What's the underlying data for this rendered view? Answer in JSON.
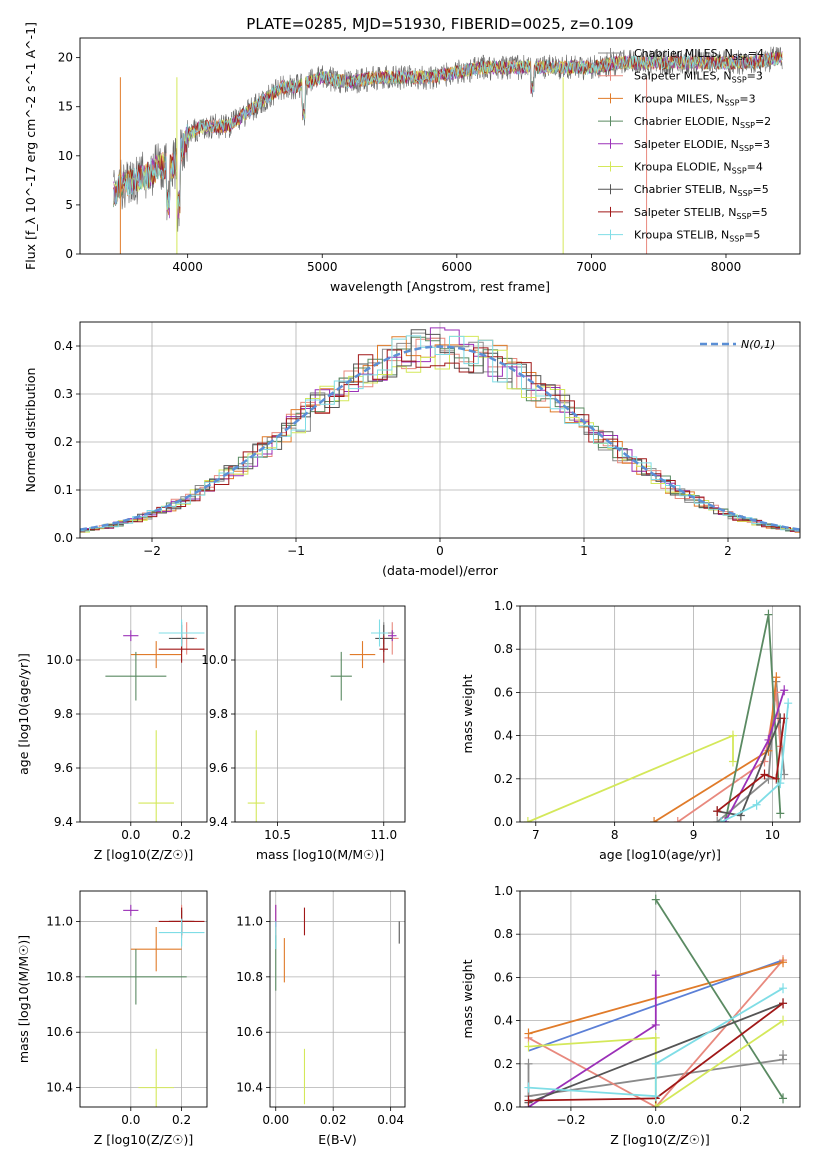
{
  "figure": {
    "title": "PLATE=0285, MJD=51930, FIBERID=0025, z=0.109"
  },
  "models": [
    {
      "name": "Chabrier MILES",
      "nssp": "4",
      "color": "#8a8a8a"
    },
    {
      "name": "Salpeter MILES",
      "nssp": "3",
      "color": "#e8897e"
    },
    {
      "name": "Kroupa MILES",
      "nssp": "3",
      "color": "#e07b2a"
    },
    {
      "name": "Chabrier ELODIE",
      "nssp": "2",
      "color": "#5a8a62"
    },
    {
      "name": "Salpeter ELODIE",
      "nssp": "3",
      "color": "#9b30b8"
    },
    {
      "name": "Kroupa ELODIE",
      "nssp": "4",
      "color": "#d4e85a"
    },
    {
      "name": "Chabrier STELIB",
      "nssp": "5",
      "color": "#555555"
    },
    {
      "name": "Salpeter STELIB",
      "nssp": "5",
      "color": "#a01818"
    },
    {
      "name": "Kroupa STELIB",
      "nssp": "5",
      "color": "#7fdde6"
    }
  ],
  "chart_data": [
    {
      "id": "spectrum",
      "type": "line",
      "title": "PLATE=0285, MJD=51930, FIBERID=0025, z=0.109",
      "xlabel": "wavelength [Angstrom, rest frame]",
      "ylabel": "Flux [f_λ 10^-17 erg cm^-2 s^-1 A^-1]",
      "xlim": [
        3200,
        8550
      ],
      "ylim": [
        0,
        22
      ],
      "xticks": [
        4000,
        5000,
        6000,
        7000,
        8000
      ],
      "yticks": [
        0,
        5,
        10,
        15,
        20
      ],
      "grid": false,
      "legend_position": "top-right",
      "spectrum_envelope": {
        "x": [
          3450,
          3500,
          3600,
          3700,
          3800,
          3900,
          4000,
          4100,
          4200,
          4300,
          4400,
          4500,
          4600,
          4700,
          4800,
          4900,
          5000,
          5200,
          5400,
          5600,
          5800,
          6000,
          6200,
          6400,
          6600,
          6800,
          7000,
          7200,
          7400,
          7600,
          7800,
          8000,
          8200,
          8400
        ],
        "y": [
          6,
          7,
          7.5,
          8,
          9,
          9,
          12,
          13,
          13,
          13,
          14,
          15,
          16,
          17,
          17,
          17.5,
          18,
          17.5,
          18,
          18,
          18,
          18.5,
          19,
          19,
          19,
          19,
          19,
          19.5,
          19.5,
          19.5,
          19.5,
          19.5,
          19.5,
          20
        ]
      }
    },
    {
      "id": "residuals",
      "type": "histogram",
      "xlabel": "(data-model)/error",
      "ylabel": "Normed distribution",
      "xlim": [
        -2.5,
        2.5
      ],
      "ylim": [
        0,
        0.45
      ],
      "xticks": [
        -2,
        -1,
        0,
        1,
        2
      ],
      "yticks": [
        0.0,
        0.1,
        0.2,
        0.3,
        0.4
      ],
      "grid": true,
      "legend_position": "top-right",
      "reference_curve": "N(0,1)"
    },
    {
      "id": "age-vs-Z",
      "type": "errorbar",
      "xlabel": "Z [log10(Z/Z☉)]",
      "ylabel": "age [log10(age/yr)]",
      "xlim": [
        -0.2,
        0.3
      ],
      "ylim": [
        9.4,
        10.2
      ],
      "xticks": [
        0.0,
        0.2
      ],
      "yticks": [
        9.4,
        9.6,
        9.8,
        10.0
      ],
      "grid": true,
      "points": [
        {
          "model": 0,
          "x": 0.2,
          "y": 10.1,
          "xerr": 0.05,
          "yerr": 0.04
        },
        {
          "model": 1,
          "x": 0.22,
          "y": 10.08,
          "xerr": 0.04,
          "yerr": 0.06
        },
        {
          "model": 2,
          "x": 0.1,
          "y": 10.02,
          "xerr": 0.1,
          "yerr": 0.05
        },
        {
          "model": 3,
          "x": 0.02,
          "y": 9.94,
          "xerr": 0.12,
          "yerr": 0.09
        },
        {
          "model": 4,
          "x": 0.0,
          "y": 10.09,
          "xerr": 0.03,
          "yerr": 0.02
        },
        {
          "model": 5,
          "x": 0.1,
          "y": 9.47,
          "xerr": 0.07,
          "yerr": 0.27
        },
        {
          "model": 6,
          "x": 0.2,
          "y": 10.08,
          "xerr": 0.05,
          "yerr": 0.05
        },
        {
          "model": 7,
          "x": 0.2,
          "y": 10.04,
          "xerr": 0.09,
          "yerr": 0.05
        },
        {
          "model": 8,
          "x": 0.2,
          "y": 10.1,
          "xerr": 0.09,
          "yerr": 0.05
        }
      ]
    },
    {
      "id": "age-vs-mass",
      "type": "errorbar",
      "xlabel": "mass [log10(M/M☉)]",
      "ylabel": "",
      "xlim": [
        10.3,
        11.1
      ],
      "ylim": [
        9.4,
        10.2
      ],
      "xticks": [
        10.5,
        11.0
      ],
      "yticks": [
        9.4,
        9.6,
        9.8,
        10.0
      ],
      "grid": true,
      "points": [
        {
          "model": 0,
          "x": 11.0,
          "y": 10.1,
          "xerr": 0.05,
          "yerr": 0.04
        },
        {
          "model": 1,
          "x": 11.04,
          "y": 10.08,
          "xerr": 0.03,
          "yerr": 0.06
        },
        {
          "model": 2,
          "x": 10.9,
          "y": 10.02,
          "xerr": 0.06,
          "yerr": 0.05
        },
        {
          "model": 3,
          "x": 10.8,
          "y": 9.94,
          "xerr": 0.05,
          "yerr": 0.09
        },
        {
          "model": 4,
          "x": 11.04,
          "y": 10.09,
          "xerr": 0.02,
          "yerr": 0.02
        },
        {
          "model": 5,
          "x": 10.4,
          "y": 9.47,
          "xerr": 0.04,
          "yerr": 0.27
        },
        {
          "model": 6,
          "x": 11.0,
          "y": 10.08,
          "xerr": 0.04,
          "yerr": 0.05
        },
        {
          "model": 7,
          "x": 11.0,
          "y": 10.04,
          "xerr": 0.02,
          "yerr": 0.05
        },
        {
          "model": 8,
          "x": 10.98,
          "y": 10.1,
          "xerr": 0.04,
          "yerr": 0.05
        }
      ]
    },
    {
      "id": "weight-vs-age",
      "type": "line",
      "xlabel": "age [log10(age/yr)]",
      "ylabel": "mass weight",
      "xlim": [
        6.8,
        10.35
      ],
      "ylim": [
        0,
        1
      ],
      "xticks": [
        7,
        8,
        9,
        10
      ],
      "yticks": [
        0.0,
        0.2,
        0.4,
        0.6,
        0.8,
        1.0
      ],
      "grid": true,
      "series": [
        {
          "model": 0,
          "x": [
            9.3,
            9.95,
            10.05,
            10.15
          ],
          "y": [
            0.0,
            0.2,
            0.65,
            0.22
          ]
        },
        {
          "model": 1,
          "x": [
            8.8,
            9.9,
            10.05,
            10.1
          ],
          "y": [
            0.0,
            0.28,
            0.6,
            0.35
          ]
        },
        {
          "model": 2,
          "x": [
            8.5,
            9.95,
            10.05
          ],
          "y": [
            0.0,
            0.33,
            0.67
          ]
        },
        {
          "model": 3,
          "x": [
            9.4,
            9.95,
            10.1
          ],
          "y": [
            0.0,
            0.96,
            0.04
          ]
        },
        {
          "model": 4,
          "x": [
            9.4,
            9.95,
            10.15
          ],
          "y": [
            0.0,
            0.38,
            0.61
          ]
        },
        {
          "model": 5,
          "x": [
            6.9,
            9.5,
            9.5
          ],
          "y": [
            0.0,
            0.4,
            0.28
          ]
        },
        {
          "model": 6,
          "x": [
            9.3,
            9.6,
            10.1
          ],
          "y": [
            0.05,
            0.03,
            0.48
          ]
        },
        {
          "model": 7,
          "x": [
            9.3,
            9.9,
            10.05,
            10.15
          ],
          "y": [
            0.05,
            0.22,
            0.2,
            0.48
          ]
        },
        {
          "model": 8,
          "x": [
            9.35,
            9.8,
            10.1,
            10.2
          ],
          "y": [
            0.0,
            0.08,
            0.18,
            0.55
          ]
        }
      ]
    },
    {
      "id": "mass-vs-Z",
      "type": "errorbar",
      "xlabel": "Z [log10(Z/Z☉)]",
      "ylabel": "mass [log10(M/M☉)]",
      "xlim": [
        -0.2,
        0.3
      ],
      "ylim": [
        10.33,
        11.11
      ],
      "xticks": [
        0.0,
        0.2
      ],
      "yticks": [
        10.4,
        10.6,
        10.8,
        11.0
      ],
      "grid": true,
      "points": [
        {
          "model": 0,
          "x": 0.2,
          "y": 11.0,
          "xerr": 0.05,
          "yerr": 0.05
        },
        {
          "model": 1,
          "x": 0.2,
          "y": 11.0,
          "xerr": 0.04,
          "yerr": 0.06
        },
        {
          "model": 2,
          "x": 0.1,
          "y": 10.9,
          "xerr": 0.1,
          "yerr": 0.08
        },
        {
          "model": 3,
          "x": 0.02,
          "y": 10.8,
          "xerr": 0.2,
          "yerr": 0.1
        },
        {
          "model": 4,
          "x": 0.0,
          "y": 11.04,
          "xerr": 0.03,
          "yerr": 0.02
        },
        {
          "model": 5,
          "x": 0.1,
          "y": 10.4,
          "xerr": 0.07,
          "yerr": 0.14
        },
        {
          "model": 6,
          "x": 0.2,
          "y": 11.0,
          "xerr": 0.05,
          "yerr": 0.04
        },
        {
          "model": 7,
          "x": 0.2,
          "y": 11.0,
          "xerr": 0.09,
          "yerr": 0.05
        },
        {
          "model": 8,
          "x": 0.2,
          "y": 10.96,
          "xerr": 0.09,
          "yerr": 0.05
        }
      ]
    },
    {
      "id": "mass-vs-ebv",
      "type": "errorbar",
      "xlabel": "E(B-V)",
      "ylabel": "",
      "xlim": [
        -0.002,
        0.045
      ],
      "ylim": [
        10.33,
        11.11
      ],
      "xticks": [
        0.0,
        0.02,
        0.04
      ],
      "yticks": [
        10.4,
        10.6,
        10.8,
        11.0
      ],
      "grid": true,
      "points": [
        {
          "model": 0,
          "x": 0.0,
          "y": 10.95,
          "xerr": 0,
          "yerr": 0.05
        },
        {
          "model": 1,
          "x": 0.0,
          "y": 11.0,
          "xerr": 0,
          "yerr": 0.06
        },
        {
          "model": 2,
          "x": 0.003,
          "y": 10.86,
          "xerr": 0,
          "yerr": 0.08
        },
        {
          "model": 3,
          "x": 0.0,
          "y": 10.85,
          "xerr": 0,
          "yerr": 0.1
        },
        {
          "model": 4,
          "x": 0.0,
          "y": 11.02,
          "xerr": 0,
          "yerr": 0.04
        },
        {
          "model": 5,
          "x": 0.01,
          "y": 10.44,
          "xerr": 0,
          "yerr": 0.1
        },
        {
          "model": 6,
          "x": 0.043,
          "y": 10.96,
          "xerr": 0,
          "yerr": 0.04
        },
        {
          "model": 7,
          "x": 0.01,
          "y": 11.0,
          "xerr": 0,
          "yerr": 0.05
        },
        {
          "model": 8,
          "x": 0.0,
          "y": 10.95,
          "xerr": 0,
          "yerr": 0.05
        }
      ]
    },
    {
      "id": "weight-vs-Z",
      "type": "line",
      "xlabel": "Z [log10(Z/Z☉)]",
      "ylabel": "mass weight",
      "xlim": [
        -0.32,
        0.34
      ],
      "ylim": [
        0,
        1
      ],
      "xticks": [
        -0.2,
        0.0,
        0.2
      ],
      "yticks": [
        0.0,
        0.2,
        0.4,
        0.6,
        0.8,
        1.0
      ],
      "grid": true,
      "series": [
        {
          "model": 0,
          "x": [
            -0.3,
            -0.3,
            0.3,
            0.3
          ],
          "y": [
            0.2,
            0.05,
            0.22,
            0.24
          ]
        },
        {
          "model": 1,
          "x": [
            -0.3,
            0.0,
            0.3
          ],
          "y": [
            0.32,
            0.0,
            0.68
          ]
        },
        {
          "model": 2,
          "x": [
            -0.3,
            0.3
          ],
          "y": [
            0.34,
            0.67
          ]
        },
        {
          "model": 3,
          "x": [
            0.0,
            0.3
          ],
          "y": [
            0.96,
            0.04
          ]
        },
        {
          "model": 4,
          "x": [
            -0.3,
            0.0,
            0.0
          ],
          "y": [
            0.0,
            0.38,
            0.61
          ]
        },
        {
          "model": 5,
          "x": [
            -0.3,
            0.0,
            0.0,
            0.3
          ],
          "y": [
            0.28,
            0.32,
            0.0,
            0.4
          ]
        },
        {
          "model": 6,
          "x": [
            -0.3,
            0.3
          ],
          "y": [
            0.02,
            0.48
          ]
        },
        {
          "model": 7,
          "x": [
            -0.3,
            0.0,
            0.3
          ],
          "y": [
            0.03,
            0.04,
            0.48
          ]
        },
        {
          "model": 8,
          "x": [
            -0.3,
            0.0,
            0.0,
            0.3
          ],
          "y": [
            0.09,
            0.05,
            0.2,
            0.55
          ]
        }
      ],
      "extra_line": {
        "x": [
          -0.3,
          0.3
        ],
        "y": [
          0.26,
          0.68
        ],
        "color": "#5b7fd6"
      }
    }
  ]
}
